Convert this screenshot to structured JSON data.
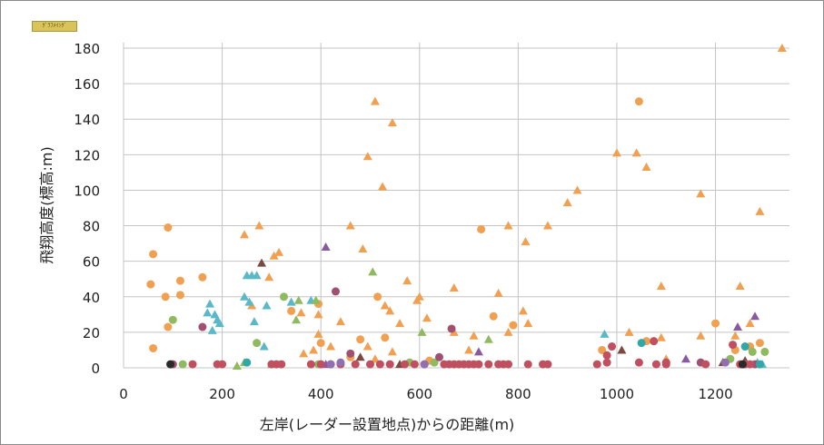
{
  "badge_text": "ｸﾞﾗﾌﾒｲﾝｸﾞ",
  "chart_data": {
    "type": "scatter",
    "title": "",
    "xlabel": "左岸(レーダー設置地点)からの距離(m)",
    "ylabel": "飛翔高度(標高:m)",
    "xlim": [
      0,
      1350
    ],
    "ylim": [
      0,
      180
    ],
    "xticks": [
      "0",
      "200",
      "400",
      "600",
      "800",
      "1000",
      "1200"
    ],
    "yticks": [
      "0",
      "20",
      "40",
      "60",
      "80",
      "100",
      "120",
      "140",
      "160",
      "180"
    ],
    "grid": true,
    "legend": "none",
    "series": [
      {
        "marker": "triangle",
        "color": "#f0a050",
        "points": [
          [
            1335,
            180
          ],
          [
            510,
            150
          ],
          [
            545,
            138
          ],
          [
            1000,
            121
          ],
          [
            1040,
            121
          ],
          [
            495,
            119
          ],
          [
            1060,
            113
          ],
          [
            525,
            102
          ],
          [
            920,
            100
          ],
          [
            1170,
            98
          ],
          [
            900,
            93
          ],
          [
            1290,
            88
          ],
          [
            275,
            80
          ],
          [
            460,
            80
          ],
          [
            780,
            80
          ],
          [
            860,
            80
          ],
          [
            245,
            75
          ],
          [
            815,
            71
          ],
          [
            485,
            67
          ],
          [
            315,
            65
          ],
          [
            305,
            63
          ],
          [
            295,
            51
          ],
          [
            575,
            49
          ],
          [
            530,
            35
          ],
          [
            1090,
            46
          ],
          [
            670,
            45
          ],
          [
            1250,
            46
          ],
          [
            760,
            42
          ],
          [
            600,
            40
          ],
          [
            595,
            38
          ],
          [
            540,
            32
          ],
          [
            360,
            31
          ],
          [
            395,
            30
          ],
          [
            440,
            26
          ],
          [
            560,
            25
          ],
          [
            615,
            28
          ],
          [
            810,
            32
          ],
          [
            820,
            25
          ],
          [
            710,
            18
          ],
          [
            780,
            20
          ],
          [
            670,
            20
          ],
          [
            1025,
            20
          ],
          [
            1170,
            18
          ],
          [
            1090,
            17
          ],
          [
            260,
            35
          ],
          [
            365,
            8
          ],
          [
            495,
            12
          ],
          [
            510,
            5
          ],
          [
            545,
            9
          ],
          [
            395,
            19
          ],
          [
            385,
            10
          ],
          [
            1100,
            5
          ],
          [
            1240,
            18
          ],
          [
            1270,
            25
          ],
          [
            700,
            10
          ],
          [
            420,
            12
          ]
        ]
      },
      {
        "marker": "circle",
        "color": "#f0a050",
        "points": [
          [
            90,
            79
          ],
          [
            60,
            64
          ],
          [
            55,
            47
          ],
          [
            115,
            49
          ],
          [
            160,
            51
          ],
          [
            115,
            41
          ],
          [
            85,
            40
          ],
          [
            90,
            23
          ],
          [
            60,
            11
          ],
          [
            1045,
            150
          ],
          [
            725,
            78
          ],
          [
            515,
            40
          ],
          [
            395,
            36
          ],
          [
            750,
            29
          ],
          [
            340,
            32
          ],
          [
            480,
            16
          ],
          [
            970,
            10
          ],
          [
            1060,
            15
          ],
          [
            1200,
            25
          ],
          [
            790,
            24
          ],
          [
            1290,
            14
          ],
          [
            1270,
            12
          ],
          [
            1240,
            10
          ],
          [
            530,
            17
          ],
          [
            400,
            14
          ],
          [
            460,
            6
          ],
          [
            620,
            4
          ]
        ]
      },
      {
        "marker": "triangle",
        "color": "#5ab8c8",
        "points": [
          [
            175,
            36
          ],
          [
            185,
            30
          ],
          [
            170,
            31
          ],
          [
            180,
            21
          ],
          [
            190,
            27
          ],
          [
            250,
            52
          ],
          [
            260,
            52
          ],
          [
            270,
            52
          ],
          [
            255,
            37
          ],
          [
            290,
            35
          ],
          [
            245,
            40
          ],
          [
            265,
            26
          ],
          [
            380,
            38
          ],
          [
            340,
            37
          ],
          [
            975,
            19
          ],
          [
            195,
            25
          ],
          [
            1285,
            3
          ],
          [
            1295,
            2
          ],
          [
            285,
            12
          ]
        ]
      },
      {
        "marker": "triangle",
        "color": "#8fba60",
        "points": [
          [
            505,
            54
          ],
          [
            355,
            38
          ],
          [
            350,
            27
          ],
          [
            390,
            38
          ],
          [
            605,
            20
          ],
          [
            740,
            16
          ],
          [
            300,
            2
          ],
          [
            230,
            1
          ],
          [
            245,
            3
          ]
        ]
      },
      {
        "marker": "circle",
        "color": "#8fba60",
        "points": [
          [
            100,
            27
          ],
          [
            325,
            40
          ],
          [
            1300,
            9
          ],
          [
            1275,
            9
          ],
          [
            1230,
            5
          ],
          [
            270,
            14
          ],
          [
            395,
            2
          ],
          [
            630,
            3
          ],
          [
            580,
            3
          ],
          [
            120,
            2
          ]
        ]
      },
      {
        "marker": "triangle",
        "color": "#8a5aa0",
        "points": [
          [
            410,
            68
          ],
          [
            1280,
            29
          ],
          [
            1245,
            23
          ],
          [
            410,
            2
          ],
          [
            1140,
            5
          ],
          [
            720,
            9
          ]
        ]
      },
      {
        "marker": "circle",
        "color": "#a05070",
        "points": [
          [
            430,
            43
          ],
          [
            665,
            22
          ],
          [
            160,
            23
          ],
          [
            460,
            8
          ],
          [
            640,
            6
          ],
          [
            1280,
            2
          ],
          [
            100,
            2
          ],
          [
            1170,
            3
          ]
        ]
      },
      {
        "marker": "triangle",
        "color": "#7a4a40",
        "points": [
          [
            280,
            59
          ],
          [
            480,
            6
          ],
          [
            560,
            2
          ],
          [
            1010,
            10
          ],
          [
            1215,
            3
          ],
          [
            1260,
            4
          ]
        ]
      },
      {
        "marker": "circle",
        "color": "#c05060",
        "points": [
          [
            990,
            12
          ],
          [
            980,
            7
          ],
          [
            1075,
            15
          ],
          [
            1235,
            13
          ],
          [
            1100,
            3
          ],
          [
            1045,
            3
          ],
          [
            980,
            3
          ],
          [
            960,
            2
          ],
          [
            720,
            2
          ],
          [
            740,
            2
          ],
          [
            760,
            2
          ],
          [
            770,
            2
          ],
          [
            780,
            2
          ],
          [
            820,
            2
          ],
          [
            850,
            2
          ],
          [
            860,
            2
          ],
          [
            680,
            2
          ],
          [
            690,
            2
          ],
          [
            700,
            2
          ],
          [
            710,
            2
          ],
          [
            650,
            2
          ],
          [
            660,
            2
          ],
          [
            670,
            2
          ],
          [
            610,
            2
          ],
          [
            570,
            2
          ],
          [
            590,
            2
          ],
          [
            540,
            2
          ],
          [
            520,
            2
          ],
          [
            500,
            2
          ],
          [
            470,
            2
          ],
          [
            440,
            2
          ],
          [
            420,
            2
          ],
          [
            400,
            2
          ],
          [
            380,
            2
          ],
          [
            300,
            2
          ],
          [
            310,
            2
          ],
          [
            320,
            2
          ],
          [
            200,
            2
          ],
          [
            190,
            2
          ],
          [
            140,
            2
          ],
          [
            1080,
            2
          ],
          [
            1100,
            2
          ],
          [
            1180,
            2
          ],
          [
            1250,
            2
          ],
          [
            1260,
            2
          ],
          [
            1270,
            2
          ]
        ]
      },
      {
        "marker": "circle",
        "color": "#30a8a8",
        "points": [
          [
            1050,
            14
          ],
          [
            1260,
            12
          ],
          [
            250,
            3
          ],
          [
            1290,
            2
          ]
        ]
      },
      {
        "marker": "circle",
        "color": "#9070b0",
        "points": [
          [
            1220,
            3
          ],
          [
            440,
            3
          ],
          [
            420,
            2
          ],
          [
            610,
            2
          ]
        ]
      },
      {
        "marker": "circle",
        "color": "#2a2a2a",
        "points": [
          [
            95,
            2
          ],
          [
            1255,
            2
          ]
        ]
      }
    ]
  }
}
